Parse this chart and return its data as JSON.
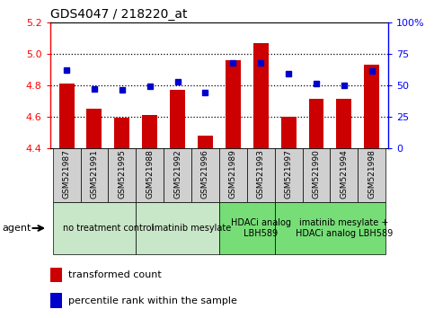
{
  "title": "GDS4047 / 218220_at",
  "samples": [
    "GSM521987",
    "GSM521991",
    "GSM521995",
    "GSM521988",
    "GSM521992",
    "GSM521996",
    "GSM521989",
    "GSM521993",
    "GSM521997",
    "GSM521990",
    "GSM521994",
    "GSM521998"
  ],
  "bar_values": [
    4.81,
    4.65,
    4.59,
    4.61,
    4.77,
    4.48,
    4.96,
    5.07,
    4.6,
    4.71,
    4.71,
    4.93
  ],
  "dot_values": [
    62,
    47,
    46,
    49,
    53,
    44,
    68,
    68,
    59,
    51,
    50,
    61
  ],
  "ylim_left": [
    4.4,
    5.2
  ],
  "ylim_right": [
    0,
    100
  ],
  "yticks_left": [
    4.4,
    4.6,
    4.8,
    5.0,
    5.2
  ],
  "yticks_right": [
    0,
    25,
    50,
    75,
    100
  ],
  "ytick_labels_right": [
    "0",
    "25",
    "50",
    "75",
    "100%"
  ],
  "bar_color": "#cc0000",
  "dot_color": "#0000cc",
  "groups": [
    {
      "label": "no treatment control",
      "start": 0,
      "end": 3,
      "color": "#c8e6c8"
    },
    {
      "label": "imatinib mesylate",
      "start": 3,
      "end": 6,
      "color": "#c8e6c8"
    },
    {
      "label": "HDACi analog\nLBH589",
      "start": 6,
      "end": 8,
      "color": "#77dd77"
    },
    {
      "label": "imatinib mesylate +\nHDACi analog LBH589",
      "start": 8,
      "end": 12,
      "color": "#77dd77"
    }
  ],
  "agent_label": "agent",
  "legend_items": [
    {
      "label": "transformed count",
      "color": "#cc0000"
    },
    {
      "label": "percentile rank within the sample",
      "color": "#0000cc"
    }
  ],
  "bar_width": 0.55,
  "base_value": 4.4,
  "sample_cell_color": "#d0d0d0",
  "grid_yticks": [
    4.6,
    4.8,
    5.0
  ]
}
